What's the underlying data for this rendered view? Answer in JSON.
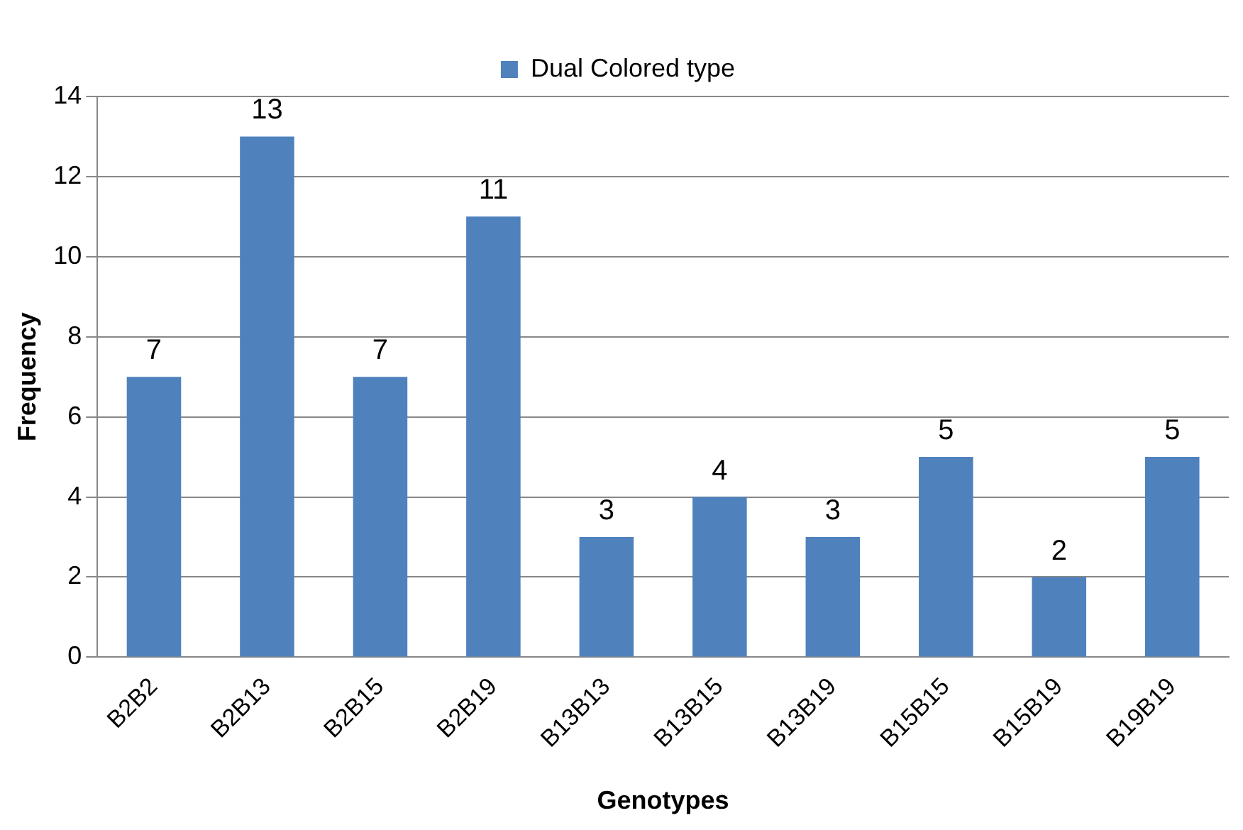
{
  "chart_data": {
    "type": "bar",
    "xlabel": "Genotypes",
    "ylabel": "Frequency",
    "categories": [
      "B2B2",
      "B2B13",
      "B2B15",
      "B2B19",
      "B13B13",
      "B13B15",
      "B13B19",
      "B15B15",
      "B15B19",
      "B19B19"
    ],
    "series": [
      {
        "name": "Dual Colored type",
        "color": "#4f81bd",
        "values": [
          7,
          13,
          7,
          11,
          3,
          4,
          3,
          5,
          2,
          5
        ]
      }
    ],
    "ylim": [
      0,
      14
    ],
    "yticks": [
      0,
      2,
      4,
      6,
      8,
      10,
      12,
      14
    ],
    "grid": "y",
    "legend": "top",
    "data_labels": true
  }
}
